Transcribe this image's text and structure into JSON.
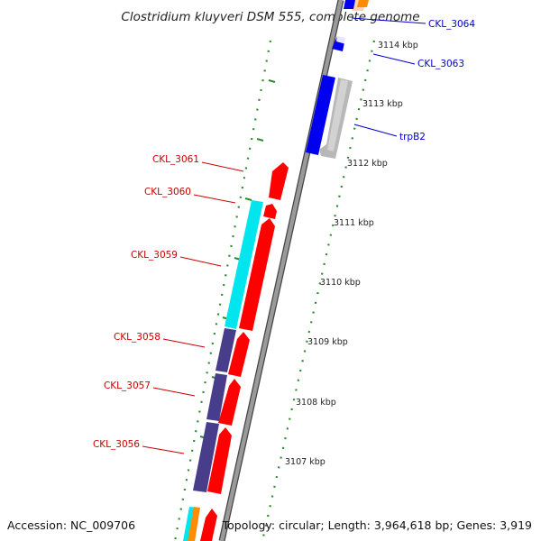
{
  "title": "Clostridium kluyveri DSM 555, complete genome",
  "footer": {
    "accession": "Accession: NC_009706",
    "info": "Topology: circular; Length: 3,964,618 bp; Genes: 3,919"
  },
  "ticks": [
    "3114 kbp",
    "3113 kbp",
    "3112 kbp",
    "3111 kbp",
    "3110 kbp",
    "3109 kbp",
    "3108 kbp",
    "3107 kbp"
  ],
  "gene_labels": {
    "right": [
      "CKL_3064",
      "CKL_3063",
      "trpB2"
    ],
    "left": [
      "CKL_3061",
      "CKL_3060",
      "CKL_3059",
      "CKL_3058",
      "CKL_3057",
      "CKL_3056"
    ]
  },
  "colors": {
    "red_gene": "#ff0000",
    "blue_gene": "#0000ee",
    "gray_gene": "#b8b8b8",
    "cyan_cog": "#00e5ee",
    "purple_cog": "#483d8b",
    "orange_cog": "#ff8c00",
    "backbone": "#808080",
    "tick_marks": "#228b22",
    "left_label": "#cc0000",
    "right_label": "#0000cc"
  }
}
